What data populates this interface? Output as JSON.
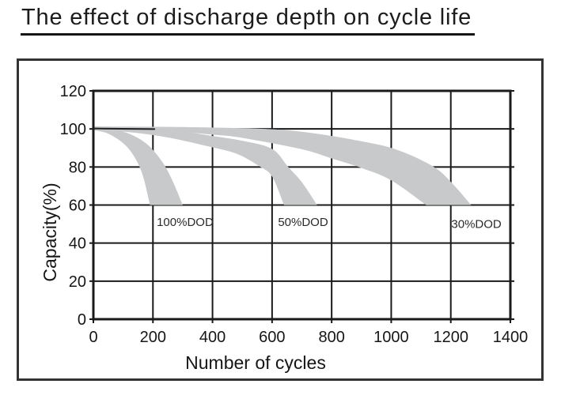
{
  "page": {
    "title": "The effect of discharge depth on cycle life"
  },
  "colors": {
    "band": "#c8c9ca",
    "grid": "#1a1a1a",
    "frame_border": "#333333",
    "text": "#161616",
    "origin_line": "#222222"
  },
  "chart_data": {
    "type": "area",
    "title": "The effect of discharge depth on cycle life",
    "xlabel": "Number of cycles",
    "ylabel": "Capacity(%)",
    "xlim": [
      0,
      1400
    ],
    "ylim": [
      0,
      120
    ],
    "x_ticks": [
      0,
      200,
      400,
      600,
      800,
      1000,
      1200,
      1400
    ],
    "y_ticks": [
      0,
      20,
      40,
      60,
      80,
      100,
      120
    ],
    "grid": true,
    "legend": "none",
    "band_color": "#c8c9ca",
    "series": [
      {
        "name": "100%DOD",
        "upper": [
          [
            0,
            100.5
          ],
          [
            60,
            99.8
          ],
          [
            120,
            97.5
          ],
          [
            180,
            92
          ],
          [
            230,
            83
          ],
          [
            265,
            73
          ],
          [
            300,
            60
          ]
        ],
        "lower": [
          [
            0,
            99.4
          ],
          [
            50,
            97.5
          ],
          [
            100,
            92.5
          ],
          [
            135,
            86
          ],
          [
            165,
            76
          ],
          [
            190,
            60
          ]
        ],
        "end_of_life_cycles_at_60pct": [
          190,
          300
        ]
      },
      {
        "name": "50%DOD",
        "upper": [
          [
            0,
            100.8
          ],
          [
            150,
            100.4
          ],
          [
            300,
            98.6
          ],
          [
            400,
            96.3
          ],
          [
            500,
            93.8
          ],
          [
            600,
            89.5
          ],
          [
            654,
            80
          ],
          [
            700,
            72
          ],
          [
            751,
            60
          ]
        ],
        "lower": [
          [
            0,
            99.3
          ],
          [
            120,
            98.3
          ],
          [
            250,
            95.5
          ],
          [
            380,
            91
          ],
          [
            480,
            87
          ],
          [
            556,
            80.5
          ],
          [
            600,
            75
          ],
          [
            640,
            60
          ]
        ],
        "end_of_life_cycles_at_60pct": [
          640,
          751
        ]
      },
      {
        "name": "30%DOD",
        "upper": [
          [
            0,
            101.3
          ],
          [
            300,
            101
          ],
          [
            600,
            99.8
          ],
          [
            750,
            97.5
          ],
          [
            900,
            93.5
          ],
          [
            1020,
            89
          ],
          [
            1143,
            80
          ],
          [
            1210,
            70.5
          ],
          [
            1268,
            60
          ]
        ],
        "lower": [
          [
            0,
            99.8
          ],
          [
            250,
            98.8
          ],
          [
            400,
            97
          ],
          [
            500,
            95.3
          ],
          [
            700,
            89.3
          ],
          [
            800,
            84.5
          ],
          [
            900,
            79.5
          ],
          [
            1000,
            73
          ],
          [
            1117,
            60
          ]
        ],
        "end_of_life_cycles_at_60pct": [
          1117,
          1268
        ]
      }
    ],
    "annotations": [
      {
        "text": "100%DOD",
        "x": 308,
        "y": 51
      },
      {
        "text": "50%DOD",
        "x": 704,
        "y": 51
      },
      {
        "text": "30%DOD",
        "x": 1286,
        "y": 50
      }
    ],
    "origin_line": {
      "points": [
        [
          0,
          100.2
        ],
        [
          205,
          99.9
        ]
      ]
    }
  }
}
